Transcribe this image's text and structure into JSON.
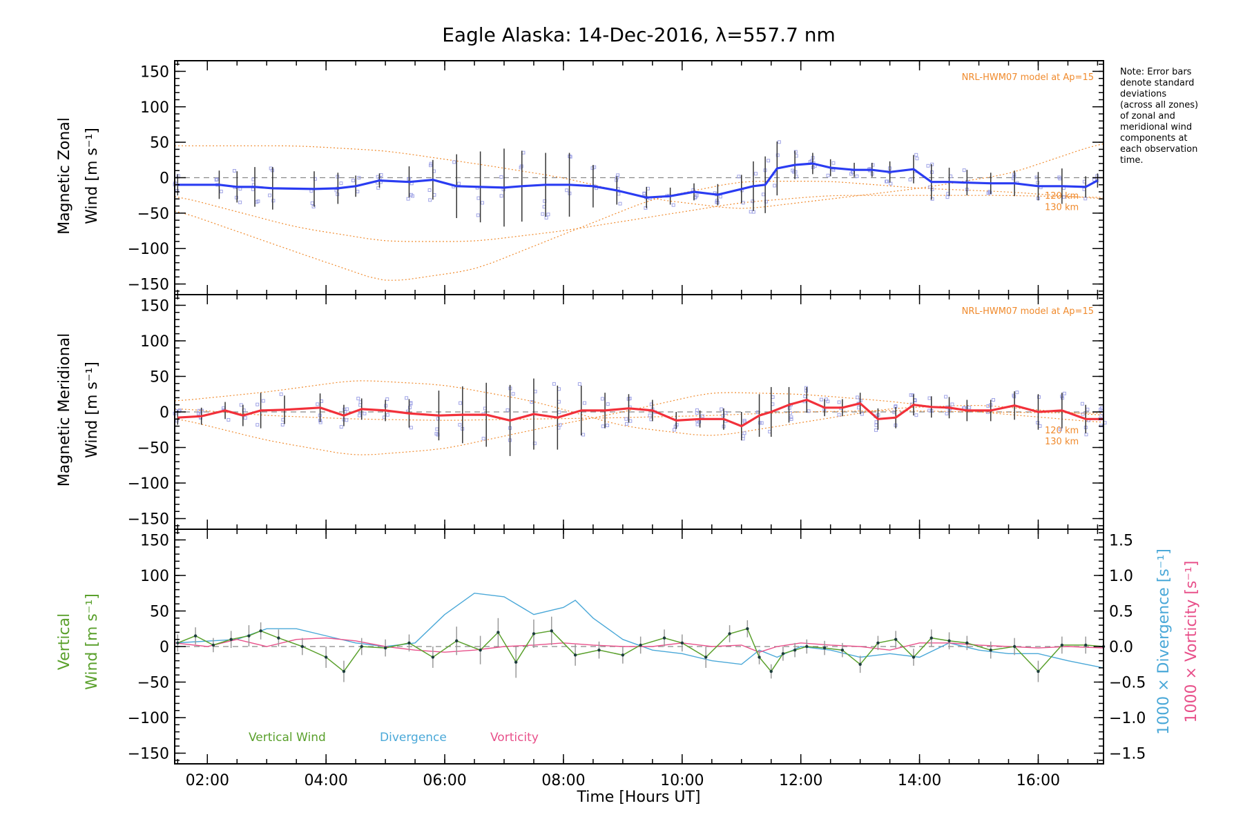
{
  "chart_data": {
    "title": "Eagle Alaska: 14-Dec-2016, λ=557.7 nm",
    "type": "line",
    "xlabel": "Time [Hours UT]",
    "xlim": [
      1.45,
      17.1
    ],
    "x_ticks": [
      2,
      4,
      6,
      8,
      10,
      12,
      14,
      16
    ],
    "x_tick_labels": [
      "02:00",
      "04:00",
      "06:00",
      "08:00",
      "10:00",
      "12:00",
      "14:00",
      "16:00"
    ],
    "note_lines": [
      "Note: Error bars",
      "denote standard",
      "deviations",
      "(across all zones)",
      "of zonal and",
      "meridional wind",
      "components at",
      "each observation",
      "time."
    ],
    "colors": {
      "zonal": "#2a3cf2",
      "meridional": "#f2303a",
      "vertical": "#5aa02c",
      "divergence": "#4aa8d8",
      "vorticity": "#e8508a",
      "model": "#f08a2c",
      "samples": "#9fa3e6",
      "errorbar": "#333333"
    },
    "panels": [
      {
        "ylabel_line1": "Magnetic Zonal",
        "ylabel_line2": "Wind [m s⁻¹]",
        "ylim": [
          -165,
          165
        ],
        "y_ticks": [
          -150,
          -100,
          -50,
          0,
          50,
          100,
          150
        ],
        "model_label": "NRL-HWM07 model at Ap=15",
        "model_alt_labels": [
          "120 km",
          "130 km"
        ],
        "series": {
          "x": [
            1.5,
            2.2,
            2.5,
            2.8,
            3.1,
            3.8,
            4.2,
            4.5,
            4.9,
            5.4,
            5.8,
            6.2,
            6.6,
            7.0,
            7.3,
            7.7,
            8.1,
            8.5,
            8.9,
            9.4,
            9.8,
            10.2,
            10.6,
            11.0,
            11.2,
            11.4,
            11.6,
            11.9,
            12.2,
            12.5,
            12.9,
            13.2,
            13.5,
            13.9,
            14.2,
            14.5,
            14.8,
            15.2,
            15.6,
            16.0,
            16.4,
            16.8,
            17.0
          ],
          "y": [
            -10,
            -10,
            -13,
            -13,
            -15,
            -16,
            -15,
            -12,
            -4,
            -6,
            -3,
            -12,
            -13,
            -14,
            -12,
            -10,
            -10,
            -12,
            -18,
            -28,
            -26,
            -20,
            -24,
            -16,
            -12,
            -10,
            13,
            18,
            20,
            14,
            11,
            11,
            8,
            12,
            -6,
            -6,
            -7,
            -8,
            -8,
            -12,
            -12,
            -13,
            -4
          ]
        },
        "errorbars": [
          15,
          20,
          22,
          28,
          30,
          25,
          22,
          15,
          10,
          22,
          28,
          45,
          50,
          55,
          50,
          45,
          45,
          30,
          20,
          15,
          12,
          12,
          15,
          20,
          35,
          40,
          38,
          20,
          15,
          12,
          10,
          10,
          15,
          20,
          25,
          20,
          18,
          15,
          18,
          20,
          25,
          15,
          10
        ],
        "model_curves": [
          {
            "x": [
              1.45,
              3.5,
              5.0,
              6.5,
              8.0,
              9.5,
              11.0,
              12.5,
              14.0,
              15.5,
              17.1
            ],
            "y": [
              -45,
              -105,
              -148,
              -130,
              -80,
              -30,
              -5,
              -5,
              -15,
              -20,
              -30
            ]
          },
          {
            "x": [
              1.45,
              3.5,
              5.0,
              6.5,
              8.0,
              9.5,
              11.0,
              12.5,
              14.0,
              15.5,
              17.1
            ],
            "y": [
              45,
              45,
              38,
              20,
              0,
              -30,
              -45,
              -30,
              -15,
              5,
              50
            ]
          },
          {
            "x": [
              1.45,
              3.5,
              5.0,
              6.5,
              8.0,
              9.5,
              11.0,
              12.5,
              14.0,
              15.5,
              17.1
            ],
            "y": [
              -25,
              -70,
              -90,
              -90,
              -75,
              -55,
              -35,
              -25,
              -25,
              -25,
              -28
            ]
          }
        ]
      },
      {
        "ylabel_line1": "Magnetic Meridional",
        "ylabel_line2": "Wind [m s⁻¹]",
        "ylim": [
          -165,
          165
        ],
        "y_ticks": [
          -150,
          -100,
          -50,
          0,
          50,
          100,
          150
        ],
        "model_label": "NRL-HWM07 model at Ap=15",
        "model_alt_labels": [
          "120 km",
          "130 km"
        ],
        "series": {
          "x": [
            1.5,
            1.9,
            2.3,
            2.6,
            2.9,
            3.3,
            3.9,
            4.3,
            4.6,
            5.0,
            5.4,
            5.9,
            6.3,
            6.7,
            7.1,
            7.5,
            7.9,
            8.3,
            8.7,
            9.1,
            9.5,
            9.9,
            10.3,
            10.7,
            11.0,
            11.3,
            11.5,
            11.8,
            12.1,
            12.4,
            12.7,
            13.0,
            13.3,
            13.6,
            13.9,
            14.2,
            14.5,
            14.8,
            15.2,
            15.6,
            16.0,
            16.4,
            16.8,
            17.1
          ],
          "y": [
            -8,
            -6,
            2,
            -5,
            2,
            3,
            6,
            -5,
            4,
            2,
            -2,
            -5,
            -4,
            -4,
            -12,
            -3,
            -8,
            2,
            2,
            5,
            2,
            -12,
            -10,
            -10,
            -20,
            -5,
            0,
            10,
            17,
            6,
            6,
            12,
            -10,
            -8,
            10,
            7,
            6,
            2,
            2,
            9,
            0,
            2,
            -10,
            -10
          ]
        },
        "errorbars": [
          10,
          12,
          12,
          15,
          25,
          20,
          20,
          15,
          15,
          15,
          20,
          35,
          40,
          45,
          50,
          50,
          45,
          35,
          25,
          20,
          15,
          12,
          12,
          15,
          20,
          30,
          35,
          25,
          18,
          12,
          12,
          15,
          15,
          15,
          15,
          15,
          15,
          15,
          15,
          20,
          25,
          25,
          20,
          15
        ],
        "model_curves": [
          {
            "x": [
              1.45,
              3.0,
              4.5,
              6.0,
              7.5,
              9.0,
              10.5,
              12.0,
              13.5,
              15.0,
              17.1
            ],
            "y": [
              -8,
              -40,
              -62,
              -52,
              -25,
              0,
              28,
              25,
              15,
              0,
              -15
            ]
          },
          {
            "x": [
              1.45,
              3.0,
              4.5,
              6.0,
              7.5,
              9.0,
              10.5,
              12.0,
              13.5,
              15.0,
              17.1
            ],
            "y": [
              15,
              28,
              45,
              38,
              15,
              -20,
              -35,
              -15,
              5,
              10,
              -5
            ]
          },
          {
            "x": [
              1.45,
              3.0,
              4.5,
              6.0,
              7.5,
              9.0,
              10.5,
              12.0,
              13.5,
              15.0,
              17.1
            ],
            "y": [
              5,
              -5,
              -10,
              -12,
              -10,
              -8,
              -5,
              0,
              2,
              0,
              -2
            ]
          }
        ]
      },
      {
        "ylabel_line1": "Vertical",
        "ylabel_line2": "Wind [m s⁻¹]",
        "ylim": [
          -165,
          165
        ],
        "y_ticks": [
          -150,
          -100,
          -50,
          0,
          50,
          100,
          150
        ],
        "y2_label_div": "1000 × Divergence [s⁻¹]",
        "y2_label_vor": "1000 × Vorticity [s⁻¹]",
        "y2lim": [
          -1.65,
          1.65
        ],
        "y2_ticks": [
          -1.5,
          -1.0,
          -0.5,
          0.0,
          0.5,
          1.0,
          1.5
        ],
        "y2_tick_labels": [
          "−1.5",
          "−1.0",
          "−0.5",
          "0.0",
          "0.5",
          "1.0",
          "1.5"
        ],
        "legend": [
          "Vertical Wind",
          "Divergence",
          "Vorticity"
        ],
        "vertical": {
          "x": [
            1.5,
            1.8,
            2.1,
            2.4,
            2.7,
            2.9,
            3.2,
            3.6,
            4.0,
            4.3,
            4.6,
            5.0,
            5.4,
            5.8,
            6.2,
            6.6,
            6.9,
            7.2,
            7.5,
            7.8,
            8.2,
            8.6,
            9.0,
            9.3,
            9.7,
            10.0,
            10.4,
            10.8,
            11.1,
            11.3,
            11.5,
            11.7,
            11.9,
            12.1,
            12.4,
            12.7,
            13.0,
            13.3,
            13.6,
            13.9,
            14.2,
            14.5,
            14.8,
            15.2,
            15.6,
            16.0,
            16.4,
            16.8,
            17.1
          ],
          "y": [
            5,
            15,
            2,
            10,
            15,
            22,
            12,
            0,
            -15,
            -35,
            0,
            -2,
            5,
            -15,
            8,
            -5,
            20,
            -22,
            18,
            22,
            -12,
            -5,
            -12,
            2,
            12,
            5,
            -15,
            18,
            25,
            -15,
            -35,
            -10,
            -5,
            0,
            -2,
            -5,
            -25,
            5,
            10,
            -15,
            12,
            8,
            5,
            -5,
            0,
            -35,
            2,
            2,
            0
          ]
        },
        "vertical_err": [
          12,
          12,
          10,
          12,
          15,
          12,
          12,
          12,
          15,
          15,
          12,
          12,
          12,
          15,
          20,
          20,
          20,
          22,
          20,
          20,
          15,
          12,
          12,
          12,
          12,
          12,
          15,
          12,
          12,
          10,
          10,
          10,
          10,
          10,
          10,
          10,
          12,
          10,
          12,
          12,
          12,
          12,
          10,
          12,
          12,
          15,
          12,
          12,
          10
        ],
        "divergence": {
          "x": [
            1.45,
            2.5,
            3.0,
            3.5,
            4.0,
            4.5,
            5.0,
            5.5,
            6.0,
            6.5,
            7.0,
            7.5,
            8.0,
            8.2,
            8.5,
            9.0,
            9.5,
            10.0,
            10.5,
            11.0,
            11.3,
            11.6,
            12.0,
            12.5,
            13.0,
            13.5,
            14.0,
            14.5,
            15.0,
            15.5,
            16.0,
            16.5,
            17.1
          ],
          "y": [
            0.05,
            0.1,
            0.25,
            0.25,
            0.15,
            0.05,
            0.0,
            0.05,
            0.45,
            0.75,
            0.7,
            0.45,
            0.55,
            0.65,
            0.4,
            0.1,
            -0.05,
            -0.1,
            -0.2,
            -0.25,
            -0.05,
            -0.15,
            0.0,
            -0.05,
            -0.15,
            -0.1,
            -0.15,
            0.05,
            -0.05,
            -0.1,
            -0.1,
            -0.2,
            -0.3
          ]
        },
        "vorticity": {
          "x": [
            1.45,
            2.0,
            2.5,
            3.0,
            3.5,
            4.0,
            4.5,
            5.0,
            5.5,
            6.0,
            6.5,
            7.0,
            7.5,
            8.0,
            8.5,
            9.0,
            9.5,
            10.0,
            10.5,
            11.0,
            11.3,
            11.6,
            12.0,
            12.5,
            13.0,
            13.5,
            14.0,
            14.5,
            15.0,
            15.5,
            16.0,
            16.5,
            17.1
          ],
          "y": [
            0.05,
            0.0,
            0.1,
            0.0,
            0.1,
            0.12,
            0.08,
            0.0,
            -0.05,
            -0.08,
            -0.05,
            0.0,
            0.02,
            0.05,
            0.02,
            0.0,
            0.0,
            0.05,
            0.0,
            0.02,
            -0.08,
            0.0,
            0.05,
            0.02,
            0.0,
            -0.05,
            0.05,
            0.05,
            0.02,
            0.0,
            -0.02,
            0.0,
            -0.02
          ]
        }
      }
    ]
  }
}
